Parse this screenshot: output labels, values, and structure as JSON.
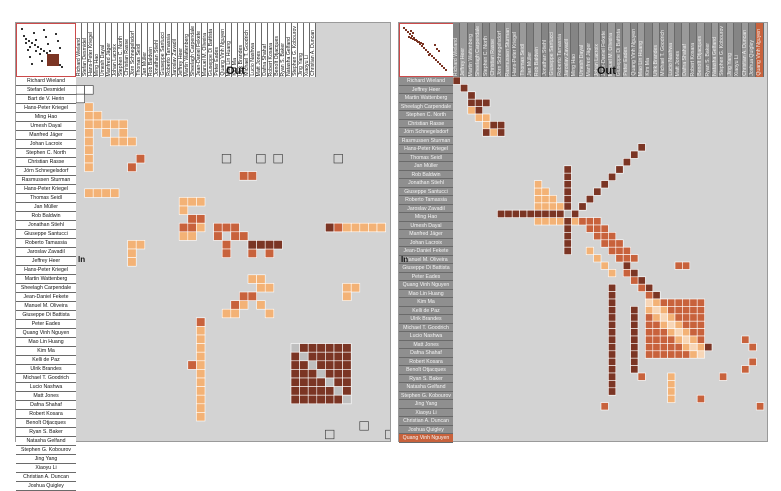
{
  "labels": {
    "out": "Out",
    "in": "In"
  },
  "colors": {
    "background": "#d3d3d3",
    "grid": "#ffffff",
    "header_light": "#ffffff",
    "header_dark": "#8f8f8f",
    "dark": "#7b3524",
    "mid": "#c8623c",
    "light": "#f3b276",
    "outline": "#333333",
    "overview_border": "#cc4a4a"
  },
  "left_view": {
    "rows": [
      "Richard Wieland",
      "Stefan Desmidel",
      "Bart de V. Herin",
      "Hans-Peter Kriegel",
      "Ming Hao",
      "Umesh Dayal",
      "Manfred Jäger",
      "Johan Lacroix",
      "Stephen C. North",
      "Christian Rasse",
      "Jörn Schnegelsdorf",
      "Rasmussen Sturman",
      "Hans-Peter Kriegel",
      "Thomas Seidl",
      "Jan Müller",
      "Rob Baldwin",
      "Jonathan Stiehl",
      "Giuseppe Santucci",
      "Roberto Tamassia",
      "Jaroslav Zavadil",
      "Jeffrey Heer",
      "Hans-Peter Kriegel",
      "Martin Wattenberg",
      "Sheelagh Carpendale",
      "Jean-Daniel Fekete",
      "Manuel M. Oliveira",
      "Giuseppe Di Battista",
      "Peter Eades",
      "Quang Vinh Nguyen",
      "Mao Lin Huang",
      "Kim Ma",
      "Kelli de Paz",
      "Ulrik Brandes",
      "Michael T. Goodrich",
      "Lucio Nashwa",
      "Matt Jones",
      "Dafna Shahaf",
      "Robert Kosara",
      "Benoît Otjacques",
      "Ryan S. Baker",
      "Natasha Gelfand",
      "Stephen G. Kobourov",
      "Jing Yang",
      "Xiaoyu Li",
      "Christian A. Duncan",
      "Joshua Quigley"
    ],
    "cols": [
      "Richard Wieland",
      "Stefan Desmidel",
      "Hans-Peter Kriegel",
      "Ming Hao",
      "Umesh Dayal",
      "Manfred Jäger",
      "Johan Lacroix",
      "Stephen C. North",
      "Christian Rasse",
      "Jörn Schnegelsdorf",
      "Thomas Seidl",
      "Jan Müller",
      "Rob Baldwin",
      "Jonathan Stiehl",
      "Giuseppe Santucci",
      "Roberto Tamassia",
      "Jaroslav Zavadil",
      "Jeffrey Heer",
      "Martin Wattenberg",
      "Sheelagh Carpendale",
      "Jean-Daniel Fekete",
      "Manuel M. Oliveira",
      "Giuseppe Di Battista",
      "Peter Eades",
      "Quang Vinh Nguyen",
      "Mao Lin Huang",
      "Kim Ma",
      "Ulrik Brandes",
      "Michael T. Goodrich",
      "Lucio Nashwa",
      "Matt Jones",
      "Dafna Shahaf",
      "Robert Kosara",
      "Benoît Otjacques",
      "Ryan S. Baker",
      "Natasha Gelfand",
      "Stephen G. Kobourov",
      "Jing Yang",
      "Xiaoyu Li",
      "Christian A. Duncan"
    ]
  },
  "right_view": {
    "rows": [
      "Richard Wieland",
      "Jeffrey Heer",
      "Martin Wattenberg",
      "Sheelagh Carpendale",
      "Stephen C. North",
      "Christian Rasse",
      "Jörn Schnegelsdorf",
      "Rasmussen Sturman",
      "Hans-Peter Kriegel",
      "Thomas Seidl",
      "Jan Müller",
      "Rob Baldwin",
      "Jonathan Stiehl",
      "Giuseppe Santucci",
      "Roberto Tamassia",
      "Jaroslav Zavadil",
      "Ming Hao",
      "Umesh Dayal",
      "Manfred Jäger",
      "Johan Lacroix",
      "Jean-Daniel Fekete",
      "Manuel M. Oliveira",
      "Giuseppe Di Battista",
      "Peter Eades",
      "Quang Vinh Nguyen",
      "Mao Lin Huang",
      "Kim Ma",
      "Kelli de Paz",
      "Ulrik Brandes",
      "Michael T. Goodrich",
      "Lucio Nashwa",
      "Matt Jones",
      "Dafna Shahaf",
      "Robert Kosara",
      "Benoît Otjacques",
      "Ryan S. Baker",
      "Natasha Gelfand",
      "Stephen G. Kobourov",
      "Jing Yang",
      "Xiaoyu Li",
      "Christian A. Duncan",
      "Joshua Quigley",
      "Quang Vinh Nguyen"
    ],
    "cols": [
      "Richard Wieland",
      "Jeffrey Heer",
      "Martin Wattenberg",
      "Sheelagh Carpendale",
      "Stephen C. North",
      "Christian Rasse",
      "Jörn Schnegelsdorf",
      "Rasmussen Sturman",
      "Hans-Peter Kriegel",
      "Thomas Seidl",
      "Jan Müller",
      "Rob Baldwin",
      "Jonathan Stiehl",
      "Giuseppe Santucci",
      "Roberto Tamassia",
      "Jaroslav Zavadil",
      "Ming Hao",
      "Umesh Dayal",
      "Manfred Jäger",
      "Johan Lacroix",
      "Jean-Daniel Fekete",
      "Manuel M. Oliveira",
      "Giuseppe Di Battista",
      "Peter Eades",
      "Quang Vinh Nguyen",
      "Mao Lin Huang",
      "Kim Ma",
      "Ulrik Brandes",
      "Michael T. Goodrich",
      "Lucio Nashwa",
      "Matt Jones",
      "Dafna Shahaf",
      "Robert Kosara",
      "Benoît Otjacques",
      "Ryan S. Baker",
      "Natasha Gelfand",
      "Stephen G. Kobourov",
      "Jing Yang",
      "Xiaoyu Li",
      "Christian A. Duncan",
      "Joshua Quigley",
      "Quang Vinh Nguyen"
    ]
  }
}
